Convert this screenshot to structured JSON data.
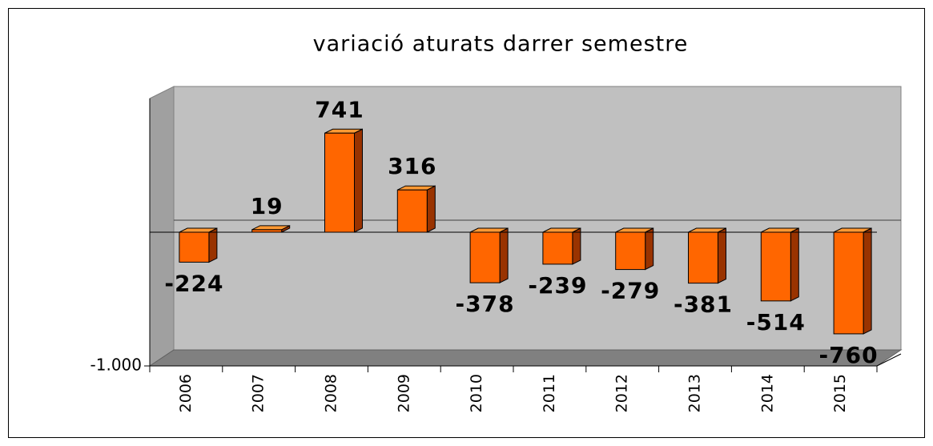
{
  "chart_data": {
    "type": "bar3d",
    "title": "variació aturats darrer semestre",
    "categories": [
      "2006",
      "2007",
      "2008",
      "2009",
      "2010",
      "2011",
      "2012",
      "2013",
      "2014",
      "2015"
    ],
    "values": [
      -224,
      19,
      741,
      316,
      -378,
      -239,
      -279,
      -381,
      -514,
      -760
    ],
    "color": "#ff6600",
    "ylim": [
      -1000,
      1000
    ],
    "yticks": [
      {
        "value": -1000,
        "label": "-1.000"
      }
    ]
  }
}
